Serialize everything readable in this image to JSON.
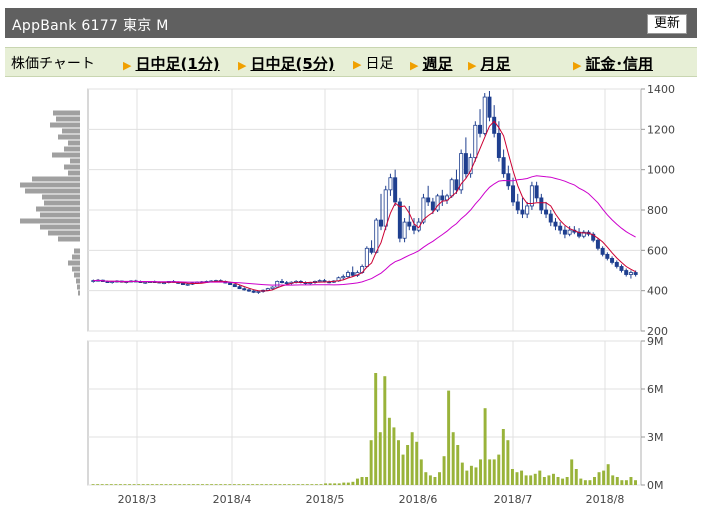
{
  "header": {
    "title": "AppBank  6177  東京 M",
    "refresh_label": "更新"
  },
  "tabs": {
    "label": "株価チャート",
    "items": [
      {
        "label": "日中足(1分)",
        "link": true
      },
      {
        "label": "日中足(5分)",
        "link": true
      },
      {
        "label": "日足",
        "link": false
      },
      {
        "label": "週足",
        "link": true
      },
      {
        "label": "月足",
        "link": true
      },
      {
        "label": "証金･信用",
        "link": true
      }
    ]
  },
  "colors": {
    "arrow": "#f0a000",
    "candle_up": "#ffffff",
    "candle_down": "#1f3f8f",
    "ma_short": "#cc0033",
    "ma_long": "#cc00cc",
    "volume": "#99b33a",
    "volume_profile": "#a0a0a0"
  },
  "chart_data": [
    {
      "type": "candlestick",
      "title": "",
      "x_ticks": [
        "2018/3",
        "2018/4",
        "2018/5",
        "2018/6",
        "2018/7",
        "2018/8"
      ],
      "y_ticks": [
        1400,
        1200,
        1000,
        800,
        600,
        400,
        200
      ],
      "ylim": [
        200,
        1400
      ],
      "axis_side": "right",
      "grid": true,
      "candles": [
        [
          448,
          455,
          440,
          450
        ],
        [
          450,
          458,
          445,
          452
        ],
        [
          452,
          455,
          443,
          445
        ],
        [
          445,
          450,
          438,
          440
        ],
        [
          440,
          448,
          435,
          445
        ],
        [
          445,
          452,
          440,
          448
        ],
        [
          448,
          450,
          440,
          442
        ],
        [
          442,
          448,
          436,
          445
        ],
        [
          445,
          452,
          441,
          448
        ],
        [
          448,
          454,
          443,
          446
        ],
        [
          446,
          450,
          438,
          440
        ],
        [
          440,
          446,
          434,
          442
        ],
        [
          442,
          448,
          438,
          445
        ],
        [
          445,
          450,
          440,
          443
        ],
        [
          443,
          446,
          436,
          438
        ],
        [
          438,
          444,
          432,
          440
        ],
        [
          440,
          448,
          436,
          446
        ],
        [
          446,
          452,
          440,
          442
        ],
        [
          442,
          446,
          434,
          436
        ],
        [
          436,
          440,
          428,
          430
        ],
        [
          430,
          436,
          424,
          432
        ],
        [
          432,
          440,
          428,
          438
        ],
        [
          438,
          446,
          434,
          442
        ],
        [
          442,
          448,
          438,
          444
        ],
        [
          444,
          450,
          440,
          446
        ],
        [
          446,
          452,
          442,
          448
        ],
        [
          448,
          454,
          444,
          450
        ],
        [
          450,
          456,
          444,
          446
        ],
        [
          446,
          450,
          436,
          438
        ],
        [
          438,
          442,
          428,
          430
        ],
        [
          430,
          434,
          418,
          420
        ],
        [
          420,
          426,
          408,
          410
        ],
        [
          410,
          416,
          400,
          404
        ],
        [
          404,
          410,
          394,
          398
        ],
        [
          398,
          406,
          388,
          392
        ],
        [
          392,
          400,
          384,
          396
        ],
        [
          396,
          406,
          390,
          402
        ],
        [
          402,
          414,
          398,
          410
        ],
        [
          410,
          422,
          406,
          418
        ],
        [
          418,
          450,
          414,
          446
        ],
        [
          446,
          458,
          436,
          440
        ],
        [
          440,
          448,
          430,
          436
        ],
        [
          436,
          446,
          430,
          442
        ],
        [
          442,
          452,
          436,
          446
        ],
        [
          446,
          452,
          436,
          440
        ],
        [
          440,
          446,
          430,
          436
        ],
        [
          436,
          444,
          430,
          440
        ],
        [
          440,
          450,
          434,
          446
        ],
        [
          446,
          456,
          440,
          450
        ],
        [
          450,
          458,
          440,
          444
        ],
        [
          444,
          450,
          436,
          442
        ],
        [
          442,
          452,
          438,
          448
        ],
        [
          448,
          470,
          444,
          464
        ],
        [
          464,
          480,
          456,
          470
        ],
        [
          470,
          500,
          464,
          490
        ],
        [
          490,
          520,
          470,
          476
        ],
        [
          476,
          500,
          468,
          490
        ],
        [
          490,
          530,
          484,
          520
        ],
        [
          520,
          620,
          514,
          610
        ],
        [
          610,
          650,
          580,
          590
        ],
        [
          590,
          760,
          584,
          750
        ],
        [
          750,
          880,
          700,
          720
        ],
        [
          720,
          920,
          700,
          900
        ],
        [
          900,
          980,
          870,
          960
        ],
        [
          960,
          1000,
          820,
          840
        ],
        [
          840,
          860,
          640,
          660
        ],
        [
          660,
          760,
          640,
          740
        ],
        [
          740,
          820,
          700,
          720
        ],
        [
          720,
          760,
          680,
          700
        ],
        [
          700,
          760,
          690,
          740
        ],
        [
          740,
          880,
          730,
          860
        ],
        [
          860,
          920,
          820,
          840
        ],
        [
          840,
          860,
          780,
          800
        ],
        [
          800,
          880,
          790,
          870
        ],
        [
          870,
          900,
          820,
          850
        ],
        [
          850,
          880,
          830,
          870
        ],
        [
          870,
          960,
          860,
          950
        ],
        [
          950,
          1000,
          880,
          900
        ],
        [
          900,
          1100,
          880,
          1080
        ],
        [
          1080,
          1160,
          960,
          980
        ],
        [
          980,
          1080,
          960,
          1060
        ],
        [
          1060,
          1240,
          1040,
          1220
        ],
        [
          1220,
          1300,
          1160,
          1180
        ],
        [
          1180,
          1380,
          1170,
          1360
        ],
        [
          1360,
          1390,
          1240,
          1260
        ],
        [
          1260,
          1320,
          1160,
          1180
        ],
        [
          1180,
          1240,
          1040,
          1060
        ],
        [
          1060,
          1100,
          960,
          980
        ],
        [
          980,
          1020,
          900,
          920
        ],
        [
          920,
          960,
          820,
          840
        ],
        [
          840,
          880,
          780,
          800
        ],
        [
          800,
          860,
          760,
          780
        ],
        [
          780,
          840,
          760,
          820
        ],
        [
          820,
          940,
          800,
          920
        ],
        [
          920,
          940,
          840,
          860
        ],
        [
          860,
          880,
          780,
          800
        ],
        [
          800,
          840,
          760,
          780
        ],
        [
          780,
          800,
          720,
          740
        ],
        [
          740,
          760,
          700,
          720
        ],
        [
          720,
          740,
          680,
          700
        ],
        [
          700,
          720,
          660,
          680
        ],
        [
          680,
          720,
          670,
          700
        ],
        [
          700,
          720,
          680,
          690
        ],
        [
          690,
          710,
          660,
          670
        ],
        [
          670,
          700,
          660,
          690
        ],
        [
          690,
          700,
          670,
          680
        ],
        [
          680,
          690,
          640,
          650
        ],
        [
          650,
          660,
          600,
          610
        ],
        [
          610,
          620,
          570,
          580
        ],
        [
          580,
          590,
          550,
          560
        ],
        [
          560,
          570,
          530,
          540
        ],
        [
          540,
          550,
          510,
          520
        ],
        [
          520,
          530,
          490,
          500
        ],
        [
          500,
          510,
          470,
          480
        ],
        [
          480,
          500,
          460,
          490
        ],
        [
          490,
          500,
          470,
          480
        ]
      ],
      "series": [
        {
          "name": "",
          "kind": "moving_average_short",
          "color": "#cc0033"
        },
        {
          "name": "",
          "kind": "moving_average_long",
          "color": "#cc00cc"
        }
      ]
    },
    {
      "type": "bar",
      "title": "",
      "y_ticks": [
        "9M",
        "6M",
        "3M",
        "0M"
      ],
      "ylim": [
        0,
        9000000
      ],
      "axis_side": "right",
      "values_millions": [
        0.05,
        0.05,
        0.05,
        0.05,
        0.05,
        0.05,
        0.05,
        0.05,
        0.05,
        0.05,
        0.05,
        0.05,
        0.05,
        0.05,
        0.05,
        0.05,
        0.05,
        0.05,
        0.05,
        0.05,
        0.05,
        0.05,
        0.05,
        0.05,
        0.05,
        0.05,
        0.05,
        0.05,
        0.05,
        0.05,
        0.05,
        0.05,
        0.05,
        0.05,
        0.05,
        0.05,
        0.05,
        0.05,
        0.05,
        0.05,
        0.05,
        0.05,
        0.05,
        0.05,
        0.05,
        0.05,
        0.05,
        0.05,
        0.05,
        0.05,
        0.05,
        0.1,
        0.1,
        0.1,
        0.1,
        0.15,
        0.15,
        0.2,
        0.4,
        0.5,
        0.5,
        2.8,
        7.0,
        3.3,
        6.8,
        4.2,
        3.6,
        2.8,
        1.9,
        2.5,
        3.3,
        2.7,
        1.6,
        0.8,
        0.6,
        0.5,
        0.8,
        1.8,
        5.9,
        3.3,
        2.5,
        1.4,
        0.9,
        1.2,
        1.1,
        1.6,
        4.8,
        1.6,
        1.6,
        1.9,
        3.5,
        2.8,
        1.0,
        0.8,
        0.9,
        0.6,
        0.6,
        0.7,
        0.9,
        0.5,
        0.6,
        0.7,
        0.5,
        0.4,
        0.5,
        1.6,
        1.0,
        0.4,
        0.3,
        0.3,
        0.5,
        0.8,
        0.9,
        1.3,
        0.6,
        0.5,
        0.3,
        0.3,
        0.5,
        0.3
      ],
      "x_ticks": [
        "2018/3",
        "2018/4",
        "2018/5",
        "2018/6",
        "2018/7",
        "2018/8"
      ]
    }
  ]
}
